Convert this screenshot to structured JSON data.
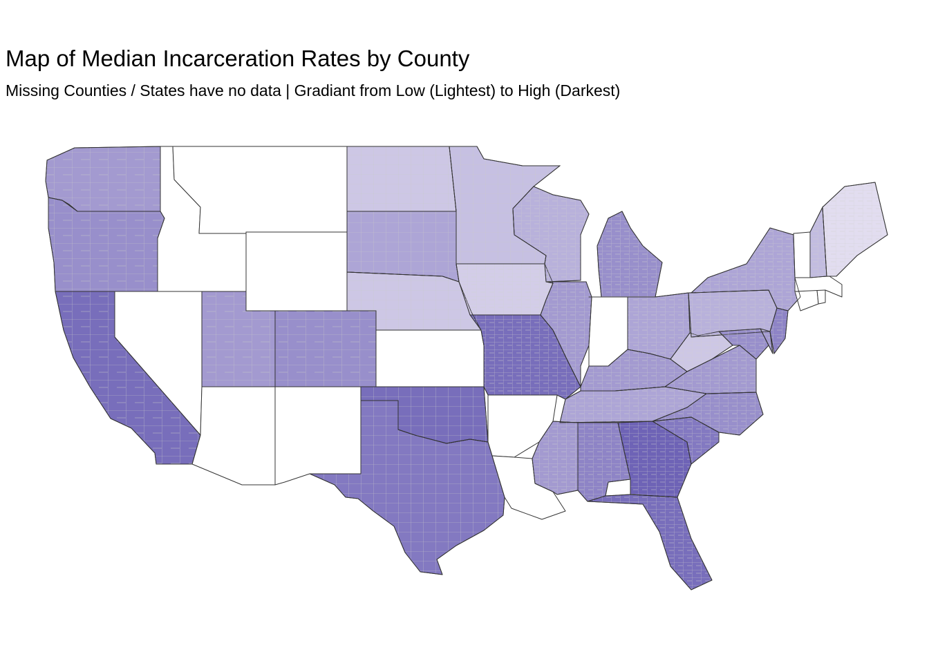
{
  "title": "Map of Median Incarceration Rates by County",
  "subtitle": "Missing Counties / States have no data | Gradiant from Low (Lightest) to High (Darkest)",
  "map": {
    "colors": {
      "no_data": "#ffffff",
      "low": "#ece8f5",
      "high": "#1a0a8c",
      "state_border": "#333333",
      "county_border": "#c9c9c9"
    },
    "states": [
      {
        "name": "Washington",
        "level": 0.35
      },
      {
        "name": "Oregon",
        "level": 0.4
      },
      {
        "name": "California",
        "level": 0.55
      },
      {
        "name": "Idaho",
        "level": null
      },
      {
        "name": "Nevada",
        "level": null
      },
      {
        "name": "Montana",
        "level": null
      },
      {
        "name": "Wyoming",
        "level": null
      },
      {
        "name": "Utah",
        "level": 0.35
      },
      {
        "name": "Colorado",
        "level": 0.4
      },
      {
        "name": "Arizona",
        "level": null
      },
      {
        "name": "New Mexico",
        "level": null
      },
      {
        "name": "North Dakota",
        "level": 0.15
      },
      {
        "name": "South Dakota",
        "level": 0.3
      },
      {
        "name": "Nebraska",
        "level": 0.15
      },
      {
        "name": "Kansas",
        "level": null
      },
      {
        "name": "Oklahoma",
        "level": 0.55
      },
      {
        "name": "Texas",
        "level": 0.5
      },
      {
        "name": "Minnesota",
        "level": 0.18
      },
      {
        "name": "Iowa",
        "level": 0.12
      },
      {
        "name": "Missouri",
        "level": 0.55
      },
      {
        "name": "Arkansas",
        "level": null
      },
      {
        "name": "Louisiana",
        "level": null
      },
      {
        "name": "Wisconsin",
        "level": 0.25
      },
      {
        "name": "Illinois",
        "level": 0.35
      },
      {
        "name": "Michigan",
        "level": 0.4
      },
      {
        "name": "Indiana",
        "level": null
      },
      {
        "name": "Ohio",
        "level": 0.3
      },
      {
        "name": "Kentucky",
        "level": 0.35
      },
      {
        "name": "Tennessee",
        "level": 0.3
      },
      {
        "name": "Mississippi",
        "level": 0.35
      },
      {
        "name": "Alabama",
        "level": 0.45
      },
      {
        "name": "Georgia",
        "level": 0.6
      },
      {
        "name": "Florida",
        "level": 0.55
      },
      {
        "name": "South Carolina",
        "level": 0.5
      },
      {
        "name": "North Carolina",
        "level": 0.4
      },
      {
        "name": "Virginia",
        "level": 0.35
      },
      {
        "name": "West Virginia",
        "level": 0.15
      },
      {
        "name": "Pennsylvania",
        "level": 0.25
      },
      {
        "name": "New York",
        "level": 0.3
      },
      {
        "name": "Maryland",
        "level": 0.4
      },
      {
        "name": "Delaware",
        "level": 0.35
      },
      {
        "name": "New Jersey",
        "level": 0.45
      },
      {
        "name": "Connecticut",
        "level": null
      },
      {
        "name": "Rhode Island",
        "level": null
      },
      {
        "name": "Massachusetts",
        "level": null
      },
      {
        "name": "Vermont",
        "level": null
      },
      {
        "name": "New Hampshire",
        "level": 0.2
      },
      {
        "name": "Maine",
        "level": 0.05
      }
    ]
  }
}
